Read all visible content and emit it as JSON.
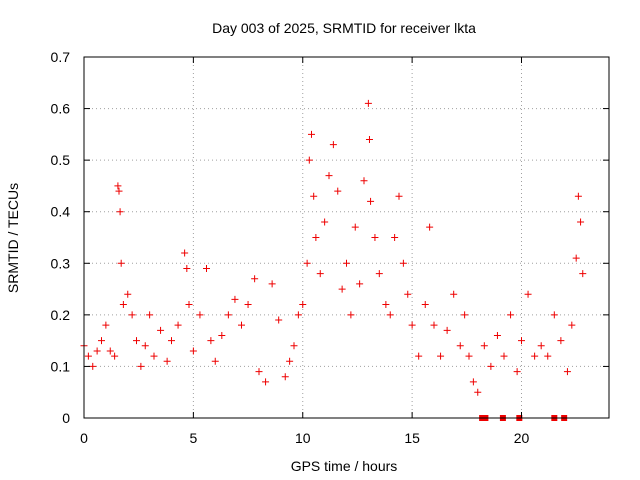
{
  "chart_data": {
    "type": "scatter",
    "title": "Day 003 of 2025, SRMTID for receiver lkta",
    "xlabel": "GPS time / hours",
    "ylabel": "SRMTID / TECUs",
    "xlim": [
      0,
      24
    ],
    "ylim": [
      0,
      0.7
    ],
    "x_ticks": [
      0,
      5,
      10,
      15,
      20
    ],
    "x_tick_labels": [
      "0",
      "5",
      "10",
      "15",
      "20"
    ],
    "y_ticks": [
      0,
      0.1,
      0.2,
      0.3,
      0.4,
      0.5,
      0.6,
      0.7
    ],
    "y_tick_labels": [
      "0",
      "0.1",
      "0.2",
      "0.3",
      "0.4",
      "0.5",
      "0.6",
      "0.7"
    ],
    "grid": true,
    "marker": "+",
    "series": [
      {
        "name": "SRMTID",
        "color": "#ee0000",
        "points": [
          [
            0.0,
            0.14
          ],
          [
            0.2,
            0.12
          ],
          [
            0.4,
            0.1
          ],
          [
            0.6,
            0.13
          ],
          [
            0.8,
            0.15
          ],
          [
            1.0,
            0.18
          ],
          [
            1.2,
            0.13
          ],
          [
            1.4,
            0.12
          ],
          [
            1.55,
            0.45
          ],
          [
            1.6,
            0.44
          ],
          [
            1.65,
            0.4
          ],
          [
            1.7,
            0.3
          ],
          [
            1.8,
            0.22
          ],
          [
            2.0,
            0.24
          ],
          [
            2.2,
            0.2
          ],
          [
            2.4,
            0.15
          ],
          [
            2.6,
            0.1
          ],
          [
            2.8,
            0.14
          ],
          [
            3.0,
            0.2
          ],
          [
            3.2,
            0.12
          ],
          [
            3.5,
            0.17
          ],
          [
            3.8,
            0.11
          ],
          [
            4.0,
            0.15
          ],
          [
            4.3,
            0.18
          ],
          [
            4.6,
            0.32
          ],
          [
            4.7,
            0.29
          ],
          [
            4.8,
            0.22
          ],
          [
            5.0,
            0.13
          ],
          [
            5.3,
            0.2
          ],
          [
            5.6,
            0.29
          ],
          [
            5.8,
            0.15
          ],
          [
            6.0,
            0.11
          ],
          [
            6.3,
            0.16
          ],
          [
            6.6,
            0.2
          ],
          [
            6.9,
            0.23
          ],
          [
            7.2,
            0.18
          ],
          [
            7.5,
            0.22
          ],
          [
            7.8,
            0.27
          ],
          [
            8.0,
            0.09
          ],
          [
            8.3,
            0.07
          ],
          [
            8.6,
            0.26
          ],
          [
            8.9,
            0.19
          ],
          [
            9.2,
            0.08
          ],
          [
            9.4,
            0.11
          ],
          [
            9.6,
            0.14
          ],
          [
            9.8,
            0.2
          ],
          [
            10.0,
            0.22
          ],
          [
            10.2,
            0.3
          ],
          [
            10.3,
            0.5
          ],
          [
            10.4,
            0.55
          ],
          [
            10.5,
            0.43
          ],
          [
            10.6,
            0.35
          ],
          [
            10.8,
            0.28
          ],
          [
            11.0,
            0.38
          ],
          [
            11.2,
            0.47
          ],
          [
            11.4,
            0.53
          ],
          [
            11.6,
            0.44
          ],
          [
            11.8,
            0.25
          ],
          [
            12.0,
            0.3
          ],
          [
            12.2,
            0.2
          ],
          [
            12.4,
            0.37
          ],
          [
            12.6,
            0.26
          ],
          [
            12.8,
            0.46
          ],
          [
            13.0,
            0.61
          ],
          [
            13.05,
            0.54
          ],
          [
            13.1,
            0.42
          ],
          [
            13.3,
            0.35
          ],
          [
            13.5,
            0.28
          ],
          [
            13.8,
            0.22
          ],
          [
            14.0,
            0.2
          ],
          [
            14.2,
            0.35
          ],
          [
            14.4,
            0.43
          ],
          [
            14.6,
            0.3
          ],
          [
            14.8,
            0.24
          ],
          [
            15.0,
            0.18
          ],
          [
            15.3,
            0.12
          ],
          [
            15.6,
            0.22
          ],
          [
            15.8,
            0.37
          ],
          [
            16.0,
            0.18
          ],
          [
            16.3,
            0.12
          ],
          [
            16.6,
            0.17
          ],
          [
            16.9,
            0.24
          ],
          [
            17.2,
            0.14
          ],
          [
            17.4,
            0.2
          ],
          [
            17.6,
            0.12
          ],
          [
            17.8,
            0.07
          ],
          [
            18.0,
            0.05
          ],
          [
            18.3,
            0.14
          ],
          [
            18.6,
            0.1
          ],
          [
            18.9,
            0.16
          ],
          [
            19.2,
            0.12
          ],
          [
            19.5,
            0.2
          ],
          [
            19.8,
            0.09
          ],
          [
            20.0,
            0.15
          ],
          [
            20.3,
            0.24
          ],
          [
            20.6,
            0.12
          ],
          [
            20.9,
            0.14
          ],
          [
            21.2,
            0.12
          ],
          [
            21.5,
            0.2
          ],
          [
            21.8,
            0.15
          ],
          [
            22.1,
            0.09
          ],
          [
            22.3,
            0.18
          ],
          [
            22.5,
            0.31
          ],
          [
            22.6,
            0.43
          ],
          [
            22.7,
            0.38
          ],
          [
            22.8,
            0.28
          ]
        ]
      }
    ],
    "gap_markers_x": [
      18.2,
      18.35,
      19.15,
      19.9,
      21.5,
      21.95
    ]
  }
}
